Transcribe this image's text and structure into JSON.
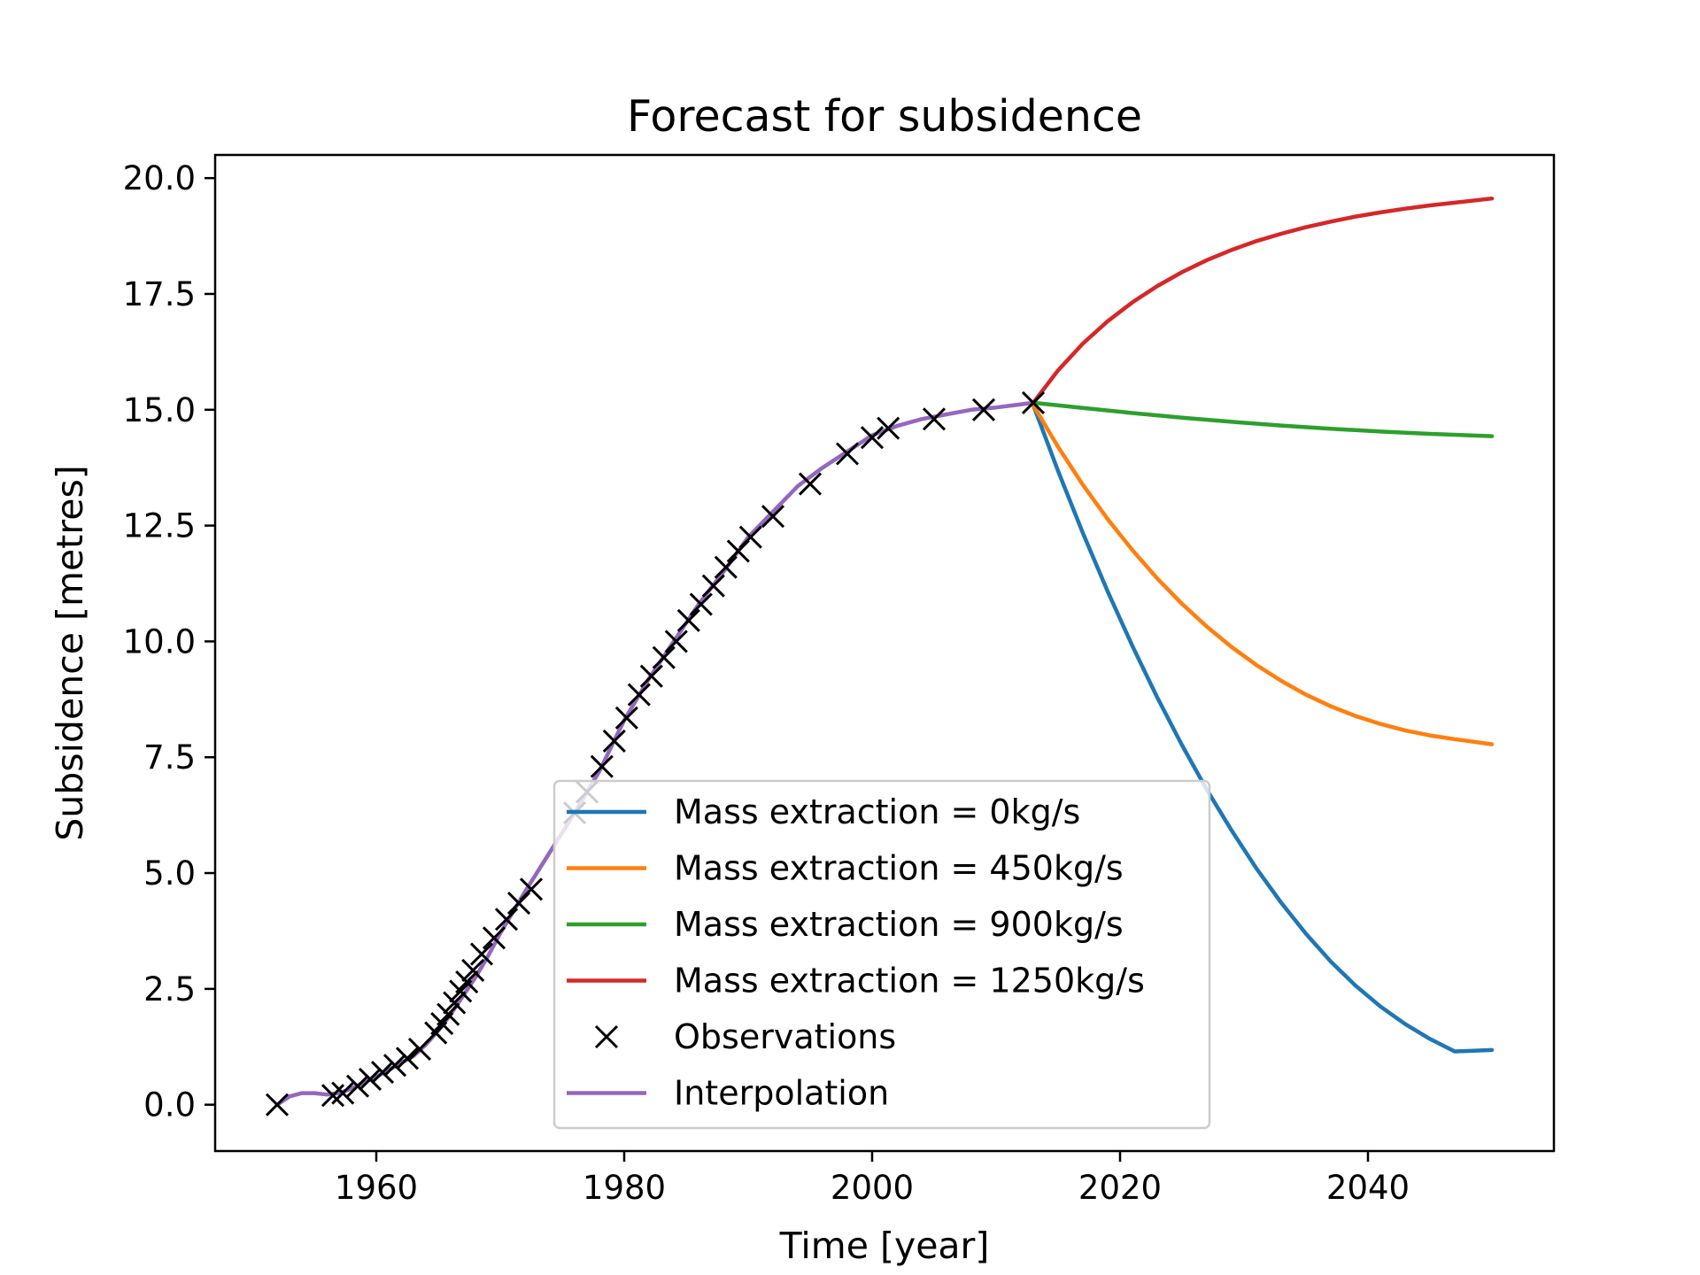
{
  "chart_data": {
    "type": "line",
    "title": "Forecast for subsidence",
    "xlabel": "Time [year]",
    "ylabel": "Subsidence [metres]",
    "xlim": [
      1947,
      2055
    ],
    "ylim": [
      -1.0,
      20.5
    ],
    "xticks": [
      1960,
      1980,
      2000,
      2020,
      2040
    ],
    "xtick_labels": [
      "1960",
      "1980",
      "2000",
      "2020",
      "2040"
    ],
    "yticks": [
      0.0,
      2.5,
      5.0,
      7.5,
      10.0,
      12.5,
      15.0,
      17.5,
      20.0
    ],
    "ytick_labels": [
      "0.0",
      "2.5",
      "5.0",
      "7.5",
      "10.0",
      "12.5",
      "15.0",
      "17.5",
      "20.0"
    ],
    "legend_position": "lower center",
    "grid": false,
    "series": [
      {
        "name": "Mass extraction = 0kg/s",
        "kind": "line",
        "color": "#1f77b4",
        "x": [
          2013,
          2015,
          2017,
          2019,
          2021,
          2023,
          2025,
          2027,
          2029,
          2031,
          2033,
          2035,
          2037,
          2039,
          2041,
          2043,
          2045,
          2047,
          2050
        ],
        "y": [
          15.1,
          13.68,
          12.34,
          11.08,
          9.9,
          8.79,
          7.76,
          6.8,
          5.92,
          5.1,
          4.36,
          3.69,
          3.09,
          2.57,
          2.12,
          1.74,
          1.42,
          1.15,
          1.18
        ]
      },
      {
        "name": "Mass extraction = 450kg/s",
        "kind": "line",
        "color": "#ff7f0e",
        "x": [
          2013,
          2015,
          2017,
          2019,
          2021,
          2023,
          2025,
          2027,
          2029,
          2031,
          2033,
          2035,
          2037,
          2039,
          2041,
          2043,
          2045,
          2047,
          2050
        ],
        "y": [
          15.1,
          14.2,
          13.38,
          12.64,
          11.97,
          11.36,
          10.81,
          10.32,
          9.88,
          9.49,
          9.15,
          8.85,
          8.6,
          8.39,
          8.22,
          8.08,
          7.97,
          7.89,
          7.78
        ]
      },
      {
        "name": "Mass extraction = 900kg/s",
        "kind": "line",
        "color": "#2ca02c",
        "x": [
          2013,
          2017,
          2021,
          2025,
          2029,
          2033,
          2037,
          2041,
          2045,
          2050
        ],
        "y": [
          15.15,
          15.04,
          14.93,
          14.83,
          14.74,
          14.66,
          14.59,
          14.53,
          14.48,
          14.43
        ]
      },
      {
        "name": "Mass extraction = 1250kg/s",
        "kind": "line",
        "color": "#d62728",
        "x": [
          2013,
          2015,
          2017,
          2019,
          2021,
          2023,
          2025,
          2027,
          2029,
          2031,
          2033,
          2035,
          2037,
          2039,
          2041,
          2043,
          2045,
          2047,
          2050
        ],
        "y": [
          15.15,
          15.85,
          16.43,
          16.91,
          17.32,
          17.67,
          17.97,
          18.23,
          18.45,
          18.64,
          18.8,
          18.94,
          19.06,
          19.17,
          19.26,
          19.34,
          19.41,
          19.47,
          19.56
        ]
      },
      {
        "name": "Observations",
        "kind": "marker",
        "color": "#000000",
        "x": [
          1952,
          1956.5,
          1957.3,
          1958.5,
          1959.5,
          1960.5,
          1961.5,
          1962.5,
          1963.5,
          1964.8,
          1965.3,
          1965.8,
          1966.3,
          1966.8,
          1967.3,
          1967.8,
          1968.5,
          1969.5,
          1970.5,
          1971.5,
          1972.5,
          1976,
          1977,
          1978.2,
          1979.2,
          1980.2,
          1981.2,
          1982.2,
          1983.2,
          1984.2,
          1985.2,
          1986.2,
          1987.2,
          1988.2,
          1989.2,
          1990.2,
          1992,
          1995,
          1998,
          2000,
          2001.3,
          2005,
          2009,
          2013
        ],
        "y": [
          0.0,
          0.2,
          0.25,
          0.4,
          0.55,
          0.7,
          0.85,
          1.0,
          1.2,
          1.55,
          1.75,
          1.95,
          2.2,
          2.45,
          2.65,
          2.9,
          3.25,
          3.6,
          4.0,
          4.35,
          4.65,
          6.3,
          6.75,
          7.3,
          7.85,
          8.35,
          8.85,
          9.25,
          9.65,
          10.0,
          10.45,
          10.8,
          11.2,
          11.6,
          11.95,
          12.25,
          12.7,
          13.4,
          14.05,
          14.4,
          14.6,
          14.8,
          15.0,
          15.15
        ]
      },
      {
        "name": "Interpolation",
        "kind": "line",
        "color": "#9467bd",
        "x": [
          1952,
          1953,
          1954,
          1955,
          1956,
          1957,
          1958,
          1959,
          1960,
          1961,
          1962,
          1963,
          1964,
          1965,
          1966,
          1967,
          1968,
          1969,
          1970,
          1971,
          1972,
          1974,
          1976,
          1978,
          1980,
          1982,
          1984,
          1986,
          1988,
          1990,
          1992,
          1994,
          1996,
          1998,
          2000,
          2002,
          2004,
          2006,
          2008,
          2010,
          2013
        ],
        "y": [
          0.0,
          0.18,
          0.25,
          0.25,
          0.22,
          0.25,
          0.35,
          0.48,
          0.6,
          0.75,
          0.9,
          1.05,
          1.3,
          1.6,
          1.95,
          2.35,
          2.75,
          3.2,
          3.7,
          4.15,
          4.6,
          5.45,
          6.3,
          7.2,
          8.3,
          9.2,
          10.0,
          10.8,
          11.5,
          12.25,
          12.8,
          13.35,
          13.75,
          14.1,
          14.45,
          14.65,
          14.8,
          14.9,
          15.0,
          15.05,
          15.15
        ]
      }
    ]
  }
}
